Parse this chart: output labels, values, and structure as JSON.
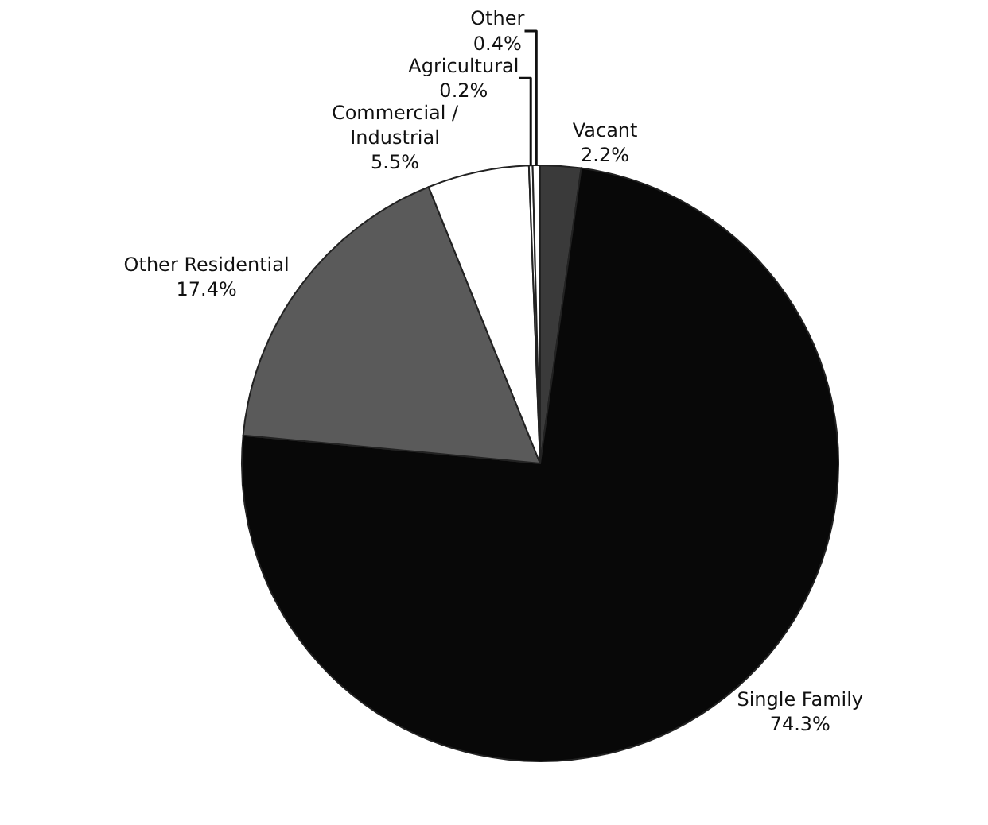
{
  "chart_data": {
    "type": "pie",
    "categories": [
      "Vacant",
      "Single Family",
      "Other Residential",
      "Commercial / Industrial",
      "Agricultural",
      "Other"
    ],
    "values": [
      2.2,
      74.3,
      17.4,
      5.5,
      0.2,
      0.4
    ],
    "value_labels": [
      "2.2%",
      "74.3%",
      "17.4%",
      "5.5%",
      "0.2%",
      "0.4%"
    ],
    "colors": [
      "#3a3a3a",
      "#080808",
      "#5a5a5a",
      "#ffffff",
      "#ffffff",
      "#ffffff"
    ],
    "legend": false
  }
}
